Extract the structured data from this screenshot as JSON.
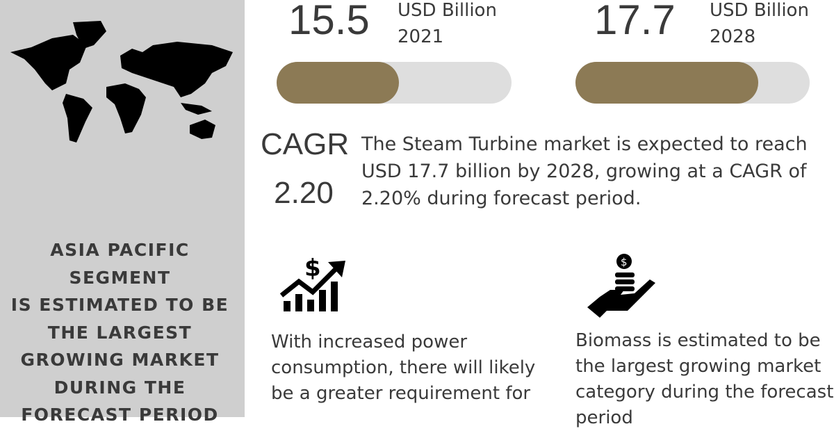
{
  "sidebar": {
    "map_icon": "world-map",
    "headline_lines": [
      "ASIA PACIFIC SEGMENT",
      "IS ESTIMATED TO BE",
      "THE LARGEST",
      "GROWING MARKET",
      "DURING THE",
      "FORECAST PERIOD"
    ]
  },
  "stats": [
    {
      "value": "15.5",
      "unit": "USD Billion",
      "year": "2021",
      "progress_percent": 52
    },
    {
      "value": "17.7",
      "unit": "USD Billion",
      "year": "2028",
      "progress_percent": 78
    }
  ],
  "cagr": {
    "label": "CAGR",
    "value": "2.20",
    "description": "The Steam Turbine market is expected to reach USD 17.7 billion by 2028, growing at a CAGR of 2.20% during forecast period."
  },
  "notes": [
    {
      "icon": "dollar-growth-chart-icon",
      "lines": [
        "With increased power",
        "consumption, there will likely",
        "be a greater requirement for"
      ]
    },
    {
      "icon": "hand-coins-icon",
      "lines": [
        "Biomass is estimated to be",
        "the largest growing market",
        "category during the forecast",
        "period"
      ]
    }
  ],
  "colors": {
    "panel": "#cfcfcf",
    "track": "#dedede",
    "fill": "#8c7a55",
    "text": "#3a3a3a"
  }
}
